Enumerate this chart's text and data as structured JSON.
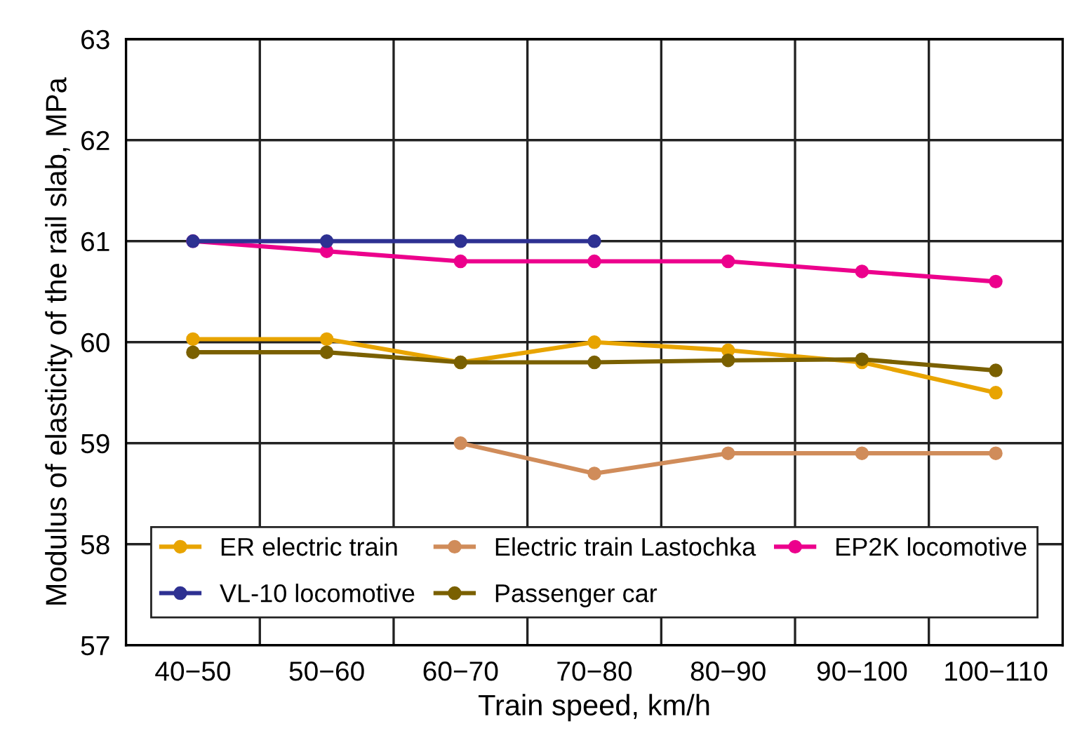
{
  "chart_data": {
    "type": "line",
    "xlabel": "Train speed, km/h",
    "ylabel": "Modulus of elasticity of the rail slab, MPa",
    "categories": [
      "40−50",
      "50−60",
      "60−70",
      "70−80",
      "80−90",
      "90−100",
      "100−110"
    ],
    "series": [
      {
        "name": "ER electric train",
        "color": "#e8a400",
        "values": [
          60.03,
          60.03,
          59.8,
          60.0,
          59.92,
          59.8,
          59.5
        ]
      },
      {
        "name": "Electric train Lastochka",
        "color": "#d08c5a",
        "values": [
          null,
          null,
          59.0,
          58.7,
          58.9,
          58.9,
          58.9
        ]
      },
      {
        "name": "EP2K locomotive",
        "color": "#ec008c",
        "values": [
          61.0,
          60.9,
          60.8,
          60.8,
          60.8,
          60.7,
          60.6
        ]
      },
      {
        "name": "VL-10 locomotive",
        "color": "#2e3192",
        "values": [
          61.0,
          61.0,
          61.0,
          61.0,
          null,
          null,
          null
        ]
      },
      {
        "name": "Passenger car",
        "color": "#7a6000",
        "values": [
          59.9,
          59.9,
          59.8,
          59.8,
          59.82,
          59.83,
          59.72
        ]
      }
    ],
    "ylim": [
      57,
      63
    ],
    "yticks": [
      57,
      58,
      59,
      60,
      61,
      62,
      63
    ],
    "grid": true,
    "legend": "bottom",
    "marker": "circle",
    "line_style": "solid"
  }
}
